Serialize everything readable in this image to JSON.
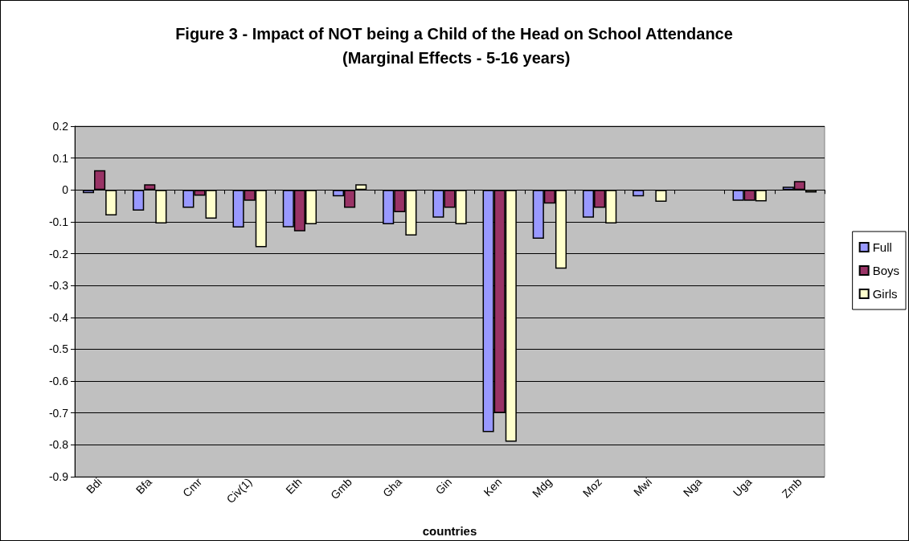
{
  "chart_data": {
    "type": "bar",
    "title": "Figure 3 - Impact of NOT being a Child of the Head on School Attendance (Marginal Effects - 5-16 years)",
    "xlabel": "countries",
    "categories": [
      "Bdi",
      "Bfa",
      "Cmr",
      "Civ(1)",
      "Eth",
      "Gmb",
      "Gha",
      "Gin",
      "Ken",
      "Mdg",
      "Moz",
      "Mwi",
      "Nga",
      "Uga",
      "Zmb"
    ],
    "series": [
      {
        "name": "Full",
        "color": "#9999ff",
        "values": [
          -0.01,
          -0.065,
          -0.056,
          -0.118,
          -0.117,
          -0.02,
          -0.108,
          -0.087,
          -0.76,
          -0.153,
          -0.087,
          -0.02,
          null,
          -0.034,
          0.01
        ]
      },
      {
        "name": "Boys",
        "color": "#993366",
        "values": [
          0.062,
          0.018,
          -0.018,
          -0.034,
          -0.13,
          -0.056,
          -0.07,
          -0.056,
          -0.7,
          -0.043,
          -0.056,
          null,
          null,
          -0.034,
          0.028
        ]
      },
      {
        "name": "Girls",
        "color": "#ffffcc",
        "values": [
          -0.08,
          -0.105,
          -0.09,
          -0.18,
          -0.108,
          0.018,
          -0.143,
          -0.108,
          -0.79,
          -0.247,
          -0.105,
          -0.037,
          null,
          -0.036,
          -0.008
        ]
      }
    ],
    "ylim": [
      -0.9,
      0.2
    ],
    "yticks": [
      -0.9,
      -0.8,
      -0.7,
      -0.6,
      -0.5,
      -0.4,
      -0.3,
      -0.2,
      -0.1,
      0,
      0.1,
      0.2
    ],
    "grid": "y",
    "legend": "right"
  }
}
